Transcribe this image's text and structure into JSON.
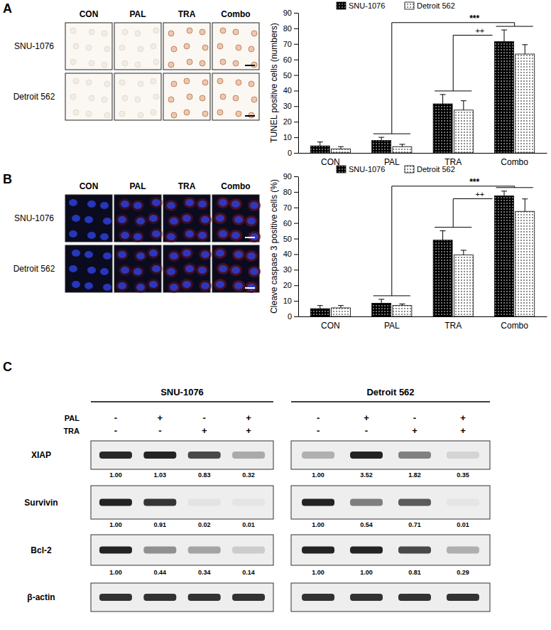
{
  "chart_data": [
    {
      "type": "bar",
      "y_label": "TUNEL positive cells (numbers)",
      "categories": [
        "CON",
        "PAL",
        "TRA",
        "Combo"
      ],
      "series": [
        {
          "name": "SNU-1076",
          "color": "#000000",
          "values": [
            4.5,
            8,
            31.5,
            71.5
          ],
          "errors": [
            2.5,
            2,
            6,
            7.5
          ]
        },
        {
          "name": "Detroit 562",
          "color": "#ffffff",
          "values": [
            2.5,
            4,
            27.5,
            63.5
          ],
          "errors": [
            1.5,
            1.5,
            6,
            6
          ]
        }
      ],
      "ylim": [
        0,
        90
      ],
      "yticks": [
        0,
        10,
        20,
        30,
        40,
        50,
        60,
        70,
        80,
        90
      ],
      "legend": "top",
      "annotations": [
        "***",
        "++"
      ]
    },
    {
      "type": "bar",
      "y_label": "Cleave caspase 3 positive cells (%)",
      "categories": [
        "CON",
        "PAL",
        "TRA",
        "Combo"
      ],
      "series": [
        {
          "name": "SNU-1076",
          "color": "#000000",
          "values": [
            5,
            8.5,
            49,
            77.5
          ],
          "errors": [
            2,
            2.5,
            6,
            3
          ]
        },
        {
          "name": "Detroit 562",
          "color": "#ffffff",
          "values": [
            5.5,
            7,
            39.5,
            67.5
          ],
          "errors": [
            1.5,
            1,
            3,
            8
          ]
        }
      ],
      "ylim": [
        0,
        90
      ],
      "yticks": [
        0,
        10,
        20,
        30,
        40,
        50,
        60,
        70,
        80,
        90
      ],
      "legend": "top",
      "annotations": [
        "***",
        "++"
      ]
    }
  ],
  "panel_labels": [
    "A",
    "B",
    "C"
  ],
  "micrographs": [
    {
      "columns": [
        "CON",
        "PAL",
        "TRA",
        "Combo"
      ],
      "rows": [
        "SNU-1076",
        "Detroit 562"
      ]
    },
    {
      "columns": [
        "CON",
        "PAL",
        "TRA",
        "Combo"
      ],
      "rows": [
        "SNU-1076",
        "Detroit 562"
      ]
    }
  ],
  "blot": {
    "treatments": [
      {
        "name": "PAL",
        "signs": [
          "-",
          "+",
          "-",
          "+"
        ]
      },
      {
        "name": "TRA",
        "signs": [
          "-",
          "-",
          "+",
          "+"
        ]
      }
    ],
    "proteins": [
      "XIAP",
      "Survivin",
      "Bcl-2",
      "β-actin"
    ],
    "cell_lines": [
      {
        "name": "SNU-1076",
        "values": [
          [
            "1.00",
            "1.03",
            "0.83",
            "0.32"
          ],
          [
            "1.00",
            "0.91",
            "0.02",
            "0.01"
          ],
          [
            "1.00",
            "0.44",
            "0.34",
            "0.14"
          ],
          null
        ]
      },
      {
        "name": "Detroit 562",
        "values": [
          [
            "1.00",
            "3.52",
            "1.82",
            "0.35"
          ],
          [
            "1.00",
            "0.54",
            "0.71",
            "0.01"
          ],
          [
            "1.00",
            "1.00",
            "0.81",
            "0.29"
          ],
          null
        ]
      }
    ]
  }
}
